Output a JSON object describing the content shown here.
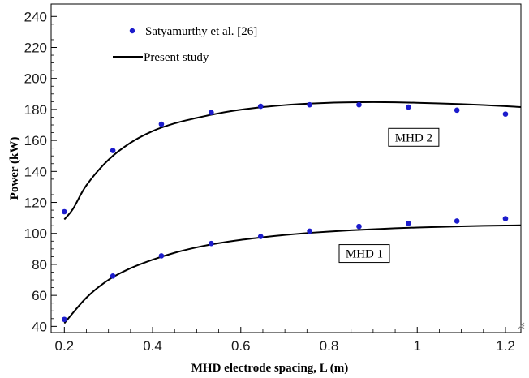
{
  "chart_data": {
    "type": "scatter",
    "title": "",
    "xlabel": "MHD electrode spacing, L (m)",
    "ylabel": "Power (kW)",
    "xlim": [
      0.17,
      1.235
    ],
    "ylim": [
      36,
      248
    ],
    "xticks": [
      0.2,
      0.4,
      0.6,
      0.8,
      1,
      1.2
    ],
    "xtick_labels": [
      "0.2",
      "0.4",
      "0.6",
      "0.8",
      "1",
      "1.2"
    ],
    "yticks": [
      40,
      60,
      80,
      100,
      120,
      140,
      160,
      180,
      200,
      220,
      240
    ],
    "ytick_labels": [
      "40",
      "60",
      "80",
      "100",
      "120",
      "140",
      "160",
      "180",
      "200",
      "220",
      "240"
    ],
    "grid": false,
    "legend": {
      "placement": "top-left",
      "entries": [
        {
          "label": "Satyamurthy et al. [26]",
          "marker": "dot",
          "color": "#1c1ccc"
        },
        {
          "label": "Present study",
          "marker": "line",
          "color": "#000000"
        }
      ]
    },
    "series": [
      {
        "kind": "points",
        "group": "MHD 2",
        "color": "#1c1ccc",
        "x": [
          0.2,
          0.31,
          0.42,
          0.533,
          0.645,
          0.756,
          0.868,
          0.98,
          1.09,
          1.2
        ],
        "y": [
          114,
          153.5,
          170.5,
          178,
          182,
          183,
          183,
          181.5,
          179.5,
          177
        ]
      },
      {
        "kind": "points",
        "group": "MHD 1",
        "color": "#1c1ccc",
        "x": [
          0.2,
          0.31,
          0.42,
          0.533,
          0.645,
          0.756,
          0.868,
          0.98,
          1.09,
          1.2
        ],
        "y": [
          44.5,
          72.5,
          85.5,
          93.5,
          98,
          101.5,
          104.5,
          106.5,
          108,
          109.5
        ]
      },
      {
        "kind": "line",
        "group": "MHD 2",
        "color": "#000000",
        "x": [
          0.2,
          0.22,
          0.25,
          0.3,
          0.35,
          0.4,
          0.45,
          0.5,
          0.55,
          0.6,
          0.65,
          0.7,
          0.75,
          0.8,
          0.85,
          0.9,
          0.95,
          1.0,
          1.05,
          1.1,
          1.15,
          1.2,
          1.235
        ],
        "y": [
          109,
          116,
          131,
          147.5,
          158.5,
          166,
          171,
          174.5,
          177.5,
          179.8,
          181.5,
          182.8,
          183.7,
          184.3,
          184.6,
          184.7,
          184.6,
          184.3,
          183.9,
          183.4,
          182.8,
          182.1,
          181.5
        ]
      },
      {
        "kind": "line",
        "group": "MHD 1",
        "color": "#000000",
        "x": [
          0.2,
          0.25,
          0.3,
          0.35,
          0.4,
          0.45,
          0.5,
          0.55,
          0.6,
          0.65,
          0.7,
          0.75,
          0.8,
          0.85,
          0.9,
          0.95,
          1.0,
          1.05,
          1.1,
          1.15,
          1.2,
          1.235
        ],
        "y": [
          42,
          58.5,
          70,
          77.5,
          83,
          87.5,
          91,
          93.7,
          95.8,
          97.5,
          99,
          100.2,
          101.2,
          102,
          102.7,
          103.3,
          103.8,
          104.2,
          104.6,
          104.9,
          105.1,
          105.2
        ]
      }
    ],
    "annotations": [
      {
        "text": "MHD 2",
        "x": 0.992,
        "y": 162
      },
      {
        "text": "MHD 1",
        "x": 0.88,
        "y": 87
      }
    ]
  }
}
